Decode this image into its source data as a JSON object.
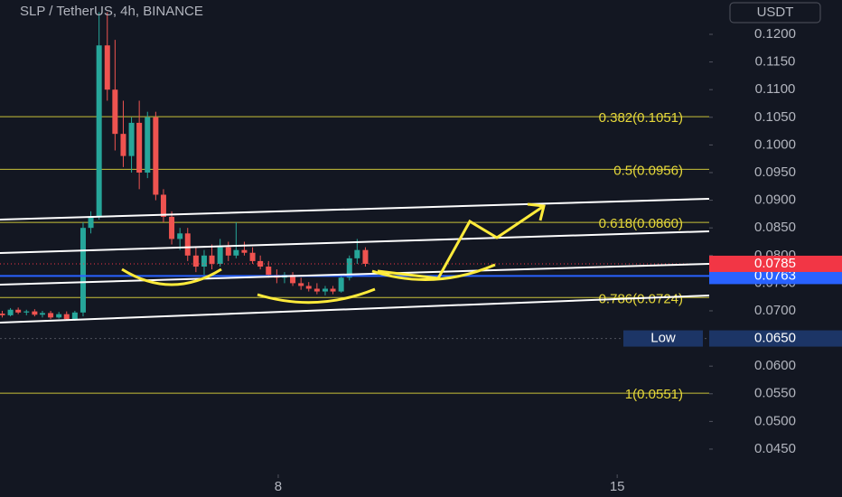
{
  "chart_data": {
    "type": "candlestick",
    "title": "SLP / TetherUS, 4h, BINANCE",
    "currency": "USDT",
    "up_color": "#26a69a",
    "down_color": "#ef5350",
    "level_color": "#c9c23a",
    "x": [
      2.3,
      2.47,
      2.63,
      2.8,
      2.97,
      3.13,
      3.3,
      3.47,
      3.63,
      3.8,
      3.97,
      4.13,
      4.3,
      4.47,
      4.63,
      4.8,
      4.97,
      5.13,
      5.3,
      5.47,
      5.63,
      5.8,
      5.97,
      6.13,
      6.3,
      6.47,
      6.63,
      6.8,
      6.97,
      7.13,
      7.3,
      7.47,
      7.63,
      7.8,
      7.97,
      8.13,
      8.3,
      8.47,
      8.63,
      8.8,
      8.97,
      9.13,
      9.3,
      9.47,
      9.63,
      9.8
    ],
    "open": [
      0.0695,
      0.0692,
      0.0702,
      0.0697,
      0.0699,
      0.0693,
      0.0696,
      0.0688,
      0.0694,
      0.0685,
      0.0697,
      0.085,
      0.087,
      0.118,
      0.11,
      0.102,
      0.098,
      0.104,
      0.095,
      0.105,
      0.091,
      0.087,
      0.083,
      0.084,
      0.08,
      0.078,
      0.08,
      0.0785,
      0.0815,
      0.08,
      0.081,
      0.0805,
      0.079,
      0.078,
      0.0765,
      0.076,
      0.0765,
      0.075,
      0.0745,
      0.074,
      0.0735,
      0.074,
      0.0735,
      0.076,
      0.0795,
      0.081
    ],
    "high": [
      0.07,
      0.0705,
      0.0706,
      0.0702,
      0.0703,
      0.07,
      0.07,
      0.0698,
      0.0699,
      0.07,
      0.086,
      0.088,
      0.124,
      0.124,
      0.119,
      0.108,
      0.105,
      0.108,
      0.106,
      0.106,
      0.092,
      0.088,
      0.085,
      0.085,
      0.0815,
      0.081,
      0.082,
      0.083,
      0.0825,
      0.086,
      0.0825,
      0.0815,
      0.08,
      0.079,
      0.0775,
      0.077,
      0.077,
      0.076,
      0.0752,
      0.075,
      0.0745,
      0.0745,
      0.0765,
      0.08,
      0.083,
      0.0815
    ],
    "low": [
      0.0688,
      0.069,
      0.0694,
      0.0692,
      0.069,
      0.0688,
      0.0685,
      0.0686,
      0.0682,
      0.0682,
      0.069,
      0.084,
      0.0865,
      0.108,
      0.099,
      0.096,
      0.095,
      0.092,
      0.094,
      0.09,
      0.086,
      0.082,
      0.081,
      0.079,
      0.077,
      0.0765,
      0.0775,
      0.078,
      0.079,
      0.0795,
      0.08,
      0.0785,
      0.0775,
      0.076,
      0.075,
      0.075,
      0.0745,
      0.0738,
      0.0735,
      0.073,
      0.0728,
      0.073,
      0.0733,
      0.0755,
      0.0785,
      0.078
    ],
    "close": [
      0.0692,
      0.0702,
      0.0697,
      0.0699,
      0.0693,
      0.0696,
      0.0688,
      0.0694,
      0.0685,
      0.0697,
      0.085,
      0.087,
      0.118,
      0.11,
      0.102,
      0.098,
      0.104,
      0.095,
      0.105,
      0.091,
      0.087,
      0.083,
      0.084,
      0.08,
      0.078,
      0.08,
      0.0785,
      0.0815,
      0.08,
      0.081,
      0.0805,
      0.079,
      0.078,
      0.0765,
      0.076,
      0.0765,
      0.075,
      0.0745,
      0.074,
      0.0735,
      0.074,
      0.0735,
      0.076,
      0.0795,
      0.081,
      0.0785
    ],
    "xlim": [
      2.254,
      16.9
    ],
    "xticks": [
      8,
      15
    ],
    "ylim": [
      0.04042,
      0.12621
    ],
    "yticks": [
      {
        "value": 0.045,
        "label": "0.0450"
      },
      {
        "value": 0.05,
        "label": "0.0500"
      },
      {
        "value": 0.055,
        "label": "0.0550"
      },
      {
        "value": 0.06,
        "label": "0.0600"
      },
      {
        "value": 0.065,
        "label": "0.0650"
      },
      {
        "value": 0.07,
        "label": "0.0700"
      },
      {
        "value": 0.075,
        "label": "0.0750"
      },
      {
        "value": 0.08,
        "label": "0.0800"
      },
      {
        "value": 0.085,
        "label": "0.0850"
      },
      {
        "value": 0.09,
        "label": "0.0900"
      },
      {
        "value": 0.095,
        "label": "0.0950"
      },
      {
        "value": 0.1,
        "label": "0.1000"
      },
      {
        "value": 0.105,
        "label": "0.1050"
      },
      {
        "value": 0.11,
        "label": "0.1100"
      },
      {
        "value": 0.115,
        "label": "0.1150"
      },
      {
        "value": 0.12,
        "label": "0.1200"
      }
    ],
    "levels": [
      {
        "value": 0.1051,
        "label": "0.382(0.1051)"
      },
      {
        "value": 0.0956,
        "label": "0.5(0.0956)"
      },
      {
        "value": 0.086,
        "label": "0.618(0.0860)"
      },
      {
        "value": 0.0724,
        "label": "0.786(0.0724)"
      },
      {
        "value": 0.0551,
        "label": "1(0.0551)"
      }
    ],
    "current_price": {
      "value": 0.0785,
      "label": "0.0785",
      "color": "#f23645"
    },
    "price_line": {
      "value": 0.0763,
      "label": "0.0763",
      "color": "#2962ff"
    },
    "low_marker": {
      "name": "Low",
      "value": 0.065,
      "label": "0.0650",
      "color": "#1c3566"
    }
  }
}
